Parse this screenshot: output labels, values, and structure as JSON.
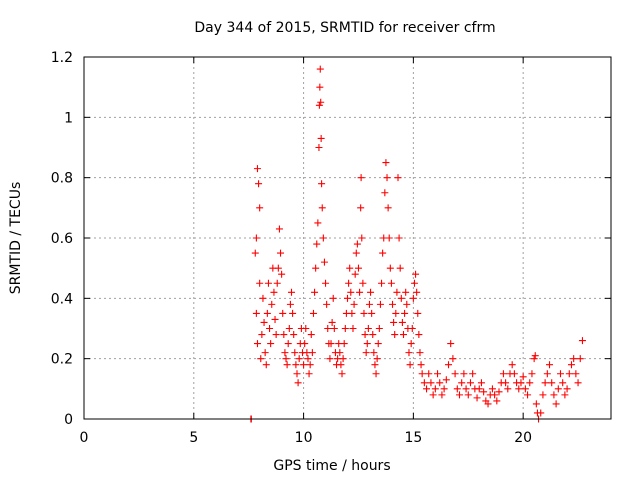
{
  "chart_data": {
    "type": "scatter",
    "title": "Day 344 of 2015, SRMTID for receiver cfrm",
    "xlabel": "GPS time / hours",
    "ylabel": "SRMTID / TECUs",
    "xlim": [
      0,
      24
    ],
    "ylim": [
      0,
      1.2
    ],
    "xticks": [
      0,
      5,
      10,
      15,
      20
    ],
    "xtick_labels": [
      "0",
      "5",
      "10",
      "15",
      "20"
    ],
    "yticks": [
      0,
      0.2,
      0.4,
      0.6,
      0.8,
      1.0,
      1.2
    ],
    "ytick_labels": [
      "0",
      "0.2",
      "0.4",
      "0.6",
      "0.8",
      "1",
      "1.2"
    ],
    "grid": true,
    "marker": "+",
    "color": "#ff0000",
    "series": [
      {
        "name": "SRMTID",
        "points": [
          [
            7.6,
            0.0
          ],
          [
            7.62,
            0.0
          ],
          [
            7.8,
            0.55
          ],
          [
            7.85,
            0.6
          ],
          [
            7.9,
            0.83
          ],
          [
            7.95,
            0.78
          ],
          [
            8.0,
            0.7
          ],
          [
            8.0,
            0.45
          ],
          [
            7.85,
            0.35
          ],
          [
            7.9,
            0.25
          ],
          [
            8.05,
            0.2
          ],
          [
            8.1,
            0.28
          ],
          [
            8.15,
            0.4
          ],
          [
            8.2,
            0.32
          ],
          [
            8.25,
            0.22
          ],
          [
            8.3,
            0.18
          ],
          [
            8.35,
            0.35
          ],
          [
            8.4,
            0.45
          ],
          [
            8.45,
            0.3
          ],
          [
            8.5,
            0.25
          ],
          [
            8.55,
            0.38
          ],
          [
            8.6,
            0.5
          ],
          [
            8.65,
            0.42
          ],
          [
            8.7,
            0.33
          ],
          [
            8.75,
            0.28
          ],
          [
            8.8,
            0.45
          ],
          [
            8.85,
            0.5
          ],
          [
            8.9,
            0.63
          ],
          [
            8.95,
            0.55
          ],
          [
            9.0,
            0.48
          ],
          [
            9.05,
            0.35
          ],
          [
            9.1,
            0.28
          ],
          [
            9.15,
            0.22
          ],
          [
            9.2,
            0.2
          ],
          [
            9.25,
            0.18
          ],
          [
            9.3,
            0.25
          ],
          [
            9.35,
            0.3
          ],
          [
            9.4,
            0.38
          ],
          [
            9.45,
            0.42
          ],
          [
            9.5,
            0.35
          ],
          [
            9.55,
            0.28
          ],
          [
            9.6,
            0.22
          ],
          [
            9.65,
            0.18
          ],
          [
            9.7,
            0.15
          ],
          [
            9.75,
            0.12
          ],
          [
            9.8,
            0.2
          ],
          [
            9.85,
            0.25
          ],
          [
            9.9,
            0.3
          ],
          [
            9.95,
            0.22
          ],
          [
            10.0,
            0.18
          ],
          [
            10.05,
            0.25
          ],
          [
            10.1,
            0.3
          ],
          [
            10.15,
            0.22
          ],
          [
            10.2,
            0.2
          ],
          [
            10.25,
            0.15
          ],
          [
            10.3,
            0.18
          ],
          [
            10.35,
            0.28
          ],
          [
            10.4,
            0.22
          ],
          [
            10.45,
            0.35
          ],
          [
            10.5,
            0.42
          ],
          [
            10.55,
            0.5
          ],
          [
            10.6,
            0.58
          ],
          [
            10.65,
            0.65
          ],
          [
            10.7,
            0.9
          ],
          [
            10.72,
            1.04
          ],
          [
            10.74,
            1.1
          ],
          [
            10.76,
            1.16
          ],
          [
            10.78,
            1.05
          ],
          [
            10.8,
            0.93
          ],
          [
            10.82,
            0.78
          ],
          [
            10.85,
            0.7
          ],
          [
            10.9,
            0.6
          ],
          [
            10.95,
            0.52
          ],
          [
            11.0,
            0.45
          ],
          [
            11.05,
            0.38
          ],
          [
            11.1,
            0.3
          ],
          [
            11.15,
            0.25
          ],
          [
            11.2,
            0.2
          ],
          [
            11.25,
            0.25
          ],
          [
            11.3,
            0.32
          ],
          [
            11.35,
            0.4
          ],
          [
            11.4,
            0.3
          ],
          [
            11.45,
            0.22
          ],
          [
            11.5,
            0.18
          ],
          [
            11.55,
            0.2
          ],
          [
            11.6,
            0.25
          ],
          [
            11.65,
            0.22
          ],
          [
            11.7,
            0.18
          ],
          [
            11.75,
            0.15
          ],
          [
            11.8,
            0.2
          ],
          [
            11.85,
            0.25
          ],
          [
            11.9,
            0.3
          ],
          [
            11.95,
            0.35
          ],
          [
            12.0,
            0.4
          ],
          [
            12.05,
            0.45
          ],
          [
            12.1,
            0.5
          ],
          [
            12.15,
            0.42
          ],
          [
            12.2,
            0.35
          ],
          [
            12.25,
            0.3
          ],
          [
            12.3,
            0.38
          ],
          [
            12.35,
            0.48
          ],
          [
            12.4,
            0.55
          ],
          [
            12.45,
            0.58
          ],
          [
            12.5,
            0.5
          ],
          [
            12.55,
            0.42
          ],
          [
            12.6,
            0.7
          ],
          [
            12.62,
            0.8
          ],
          [
            12.65,
            0.6
          ],
          [
            12.7,
            0.45
          ],
          [
            12.75,
            0.35
          ],
          [
            12.8,
            0.28
          ],
          [
            12.85,
            0.22
          ],
          [
            12.9,
            0.25
          ],
          [
            12.95,
            0.3
          ],
          [
            13.0,
            0.38
          ],
          [
            13.05,
            0.42
          ],
          [
            13.1,
            0.35
          ],
          [
            13.15,
            0.28
          ],
          [
            13.2,
            0.22
          ],
          [
            13.25,
            0.18
          ],
          [
            13.3,
            0.15
          ],
          [
            13.35,
            0.2
          ],
          [
            13.4,
            0.25
          ],
          [
            13.45,
            0.3
          ],
          [
            13.5,
            0.38
          ],
          [
            13.55,
            0.45
          ],
          [
            13.6,
            0.55
          ],
          [
            13.65,
            0.6
          ],
          [
            13.7,
            0.75
          ],
          [
            13.75,
            0.85
          ],
          [
            13.8,
            0.8
          ],
          [
            13.85,
            0.7
          ],
          [
            13.9,
            0.6
          ],
          [
            13.95,
            0.5
          ],
          [
            14.0,
            0.45
          ],
          [
            14.05,
            0.38
          ],
          [
            14.1,
            0.32
          ],
          [
            14.15,
            0.28
          ],
          [
            14.2,
            0.35
          ],
          [
            14.25,
            0.42
          ],
          [
            14.3,
            0.8
          ],
          [
            14.35,
            0.6
          ],
          [
            14.4,
            0.5
          ],
          [
            14.45,
            0.4
          ],
          [
            14.5,
            0.32
          ],
          [
            14.55,
            0.28
          ],
          [
            14.6,
            0.35
          ],
          [
            14.65,
            0.42
          ],
          [
            14.7,
            0.38
          ],
          [
            14.75,
            0.3
          ],
          [
            14.8,
            0.22
          ],
          [
            14.85,
            0.18
          ],
          [
            14.9,
            0.25
          ],
          [
            14.95,
            0.3
          ],
          [
            15.0,
            0.4
          ],
          [
            15.05,
            0.45
          ],
          [
            15.1,
            0.48
          ],
          [
            15.15,
            0.42
          ],
          [
            15.2,
            0.35
          ],
          [
            15.25,
            0.28
          ],
          [
            15.3,
            0.22
          ],
          [
            15.35,
            0.18
          ],
          [
            15.4,
            0.15
          ],
          [
            15.5,
            0.12
          ],
          [
            15.6,
            0.1
          ],
          [
            15.7,
            0.15
          ],
          [
            15.8,
            0.12
          ],
          [
            15.9,
            0.08
          ],
          [
            16.0,
            0.1
          ],
          [
            16.1,
            0.15
          ],
          [
            16.2,
            0.12
          ],
          [
            16.3,
            0.08
          ],
          [
            16.4,
            0.1
          ],
          [
            16.5,
            0.13
          ],
          [
            16.6,
            0.18
          ],
          [
            16.7,
            0.25
          ],
          [
            16.8,
            0.2
          ],
          [
            16.9,
            0.15
          ],
          [
            17.0,
            0.1
          ],
          [
            17.1,
            0.08
          ],
          [
            17.2,
            0.12
          ],
          [
            17.3,
            0.15
          ],
          [
            17.4,
            0.1
          ],
          [
            17.5,
            0.08
          ],
          [
            17.6,
            0.12
          ],
          [
            17.7,
            0.15
          ],
          [
            17.8,
            0.1
          ],
          [
            17.9,
            0.07
          ],
          [
            18.0,
            0.1
          ],
          [
            18.1,
            0.12
          ],
          [
            18.2,
            0.09
          ],
          [
            18.3,
            0.06
          ],
          [
            18.4,
            0.05
          ],
          [
            18.5,
            0.08
          ],
          [
            18.6,
            0.1
          ],
          [
            18.7,
            0.08
          ],
          [
            18.8,
            0.06
          ],
          [
            18.9,
            0.09
          ],
          [
            19.0,
            0.12
          ],
          [
            19.1,
            0.15
          ],
          [
            19.2,
            0.12
          ],
          [
            19.3,
            0.1
          ],
          [
            19.4,
            0.15
          ],
          [
            19.5,
            0.18
          ],
          [
            19.6,
            0.15
          ],
          [
            19.7,
            0.12
          ],
          [
            19.8,
            0.1
          ],
          [
            19.9,
            0.12
          ],
          [
            20.0,
            0.14
          ],
          [
            20.1,
            0.1
          ],
          [
            20.2,
            0.08
          ],
          [
            20.3,
            0.12
          ],
          [
            20.4,
            0.15
          ],
          [
            20.5,
            0.2
          ],
          [
            20.55,
            0.21
          ],
          [
            20.6,
            0.05
          ],
          [
            20.65,
            0.02
          ],
          [
            20.7,
            0.0
          ],
          [
            20.8,
            0.02
          ],
          [
            20.9,
            0.08
          ],
          [
            21.0,
            0.12
          ],
          [
            21.1,
            0.15
          ],
          [
            21.2,
            0.18
          ],
          [
            21.3,
            0.12
          ],
          [
            21.4,
            0.08
          ],
          [
            21.5,
            0.05
          ],
          [
            21.6,
            0.1
          ],
          [
            21.7,
            0.15
          ],
          [
            21.8,
            0.12
          ],
          [
            21.9,
            0.08
          ],
          [
            22.0,
            0.1
          ],
          [
            22.1,
            0.15
          ],
          [
            22.2,
            0.18
          ],
          [
            22.3,
            0.2
          ],
          [
            22.4,
            0.15
          ],
          [
            22.5,
            0.12
          ],
          [
            22.6,
            0.2
          ],
          [
            22.7,
            0.26
          ]
        ]
      }
    ]
  }
}
